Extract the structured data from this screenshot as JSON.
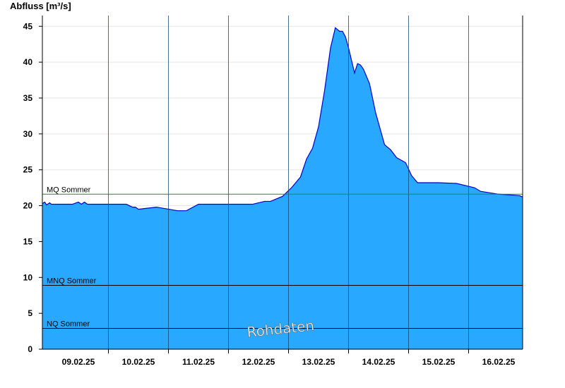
{
  "chart_data": {
    "type": "area",
    "ylabel": "Abfluss [m³/s]",
    "ylim": [
      0,
      46.5
    ],
    "yticks": [
      0,
      5,
      10,
      15,
      20,
      25,
      30,
      35,
      40,
      45
    ],
    "xlim_days": [
      -0.6,
      7.4
    ],
    "categories": [
      "09.02.25",
      "10.02.25",
      "11.02.25",
      "12.02.25",
      "13.02.25",
      "14.02.25",
      "15.02.25",
      "16.02.25"
    ],
    "grid": true,
    "fill_color": "#29a8ff",
    "line_color": "#0000cc",
    "series": [
      {
        "values_x_day": [
          -0.6,
          -0.56,
          -0.53,
          -0.48,
          -0.45,
          -0.4,
          -0.1,
          0.0,
          0.05,
          0.1,
          0.15,
          0.2,
          0.5,
          0.8,
          0.9,
          0.95,
          1.0,
          1.3,
          1.65,
          1.7,
          1.75,
          1.8,
          2.0,
          2.5,
          2.9,
          3.1,
          3.2,
          3.4,
          3.55,
          3.7,
          3.8,
          3.9,
          4.0,
          4.1,
          4.2,
          4.28,
          4.35,
          4.4,
          4.45,
          4.5,
          4.6,
          4.65,
          4.7,
          4.75,
          4.85,
          4.95,
          5.1,
          5.2,
          5.3,
          5.45,
          5.55,
          5.65,
          5.8,
          6.0,
          6.3,
          6.6,
          6.7,
          7.0,
          7.2,
          7.35,
          7.4
        ],
        "values_y": [
          20.3,
          20.5,
          20.1,
          20.4,
          20.2,
          20.2,
          20.2,
          20.5,
          20.2,
          20.5,
          20.2,
          20.2,
          20.2,
          20.2,
          19.8,
          19.8,
          19.5,
          19.8,
          19.3,
          19.3,
          19.3,
          19.3,
          20.2,
          20.2,
          20.2,
          20.6,
          20.6,
          21.3,
          22.5,
          24.0,
          26.5,
          28.0,
          31.0,
          36.0,
          42.0,
          44.8,
          44.3,
          44.3,
          43.5,
          42.0,
          38.5,
          39.8,
          39.6,
          39.0,
          37.0,
          33.0,
          28.5,
          27.8,
          26.7,
          26.0,
          24.2,
          23.2,
          23.2,
          23.2,
          23.1,
          22.5,
          22.0,
          21.6,
          21.5,
          21.4,
          21.2
        ]
      }
    ],
    "reference_lines": [
      {
        "label": "MQ Sommer",
        "value": 21.6,
        "color": "#228b22"
      },
      {
        "label": "MNQ Sommer",
        "value": 8.9,
        "color": "#000000"
      },
      {
        "label": "NQ Sommer",
        "value": 2.9,
        "color": "#000000"
      }
    ],
    "watermark": "Rohdaten"
  }
}
